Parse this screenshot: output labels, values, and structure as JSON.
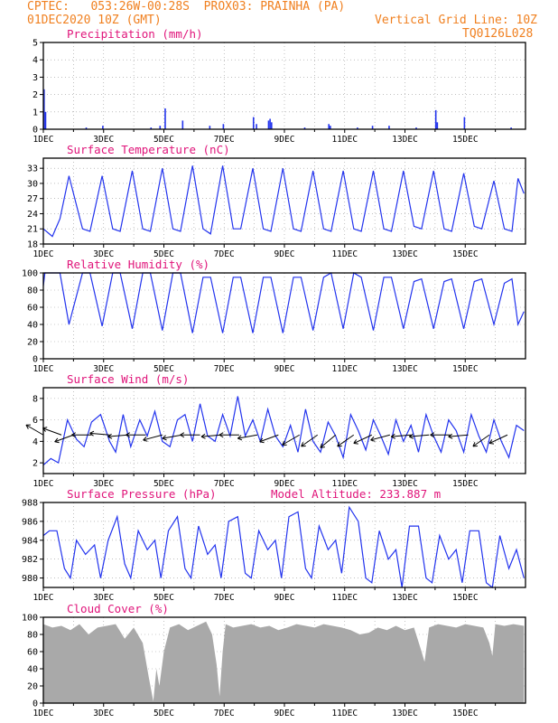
{
  "header": {
    "line1_left": "CPTEC:   053:26W-00:28S  PROX03: PRAINHA (PA)",
    "line2_left": "01DEC2020 10Z (GMT)",
    "line2_right": "Vertical Grid Line: 10Z",
    "line3_right": "TQ0126L028"
  },
  "colors": {
    "header": "#f08020",
    "title": "#e0147a",
    "series": "#2233ee",
    "cloud": "#a9a9a9",
    "grid": "#999999"
  },
  "chart_data": [
    {
      "type": "bar",
      "title": "Precipitation (mm/h)",
      "ylim": [
        0,
        5
      ],
      "yticks": [
        0,
        1,
        2,
        3,
        4,
        5
      ],
      "xticks": [
        "1DEC",
        "3DEC",
        "5DEC",
        "7DEC",
        "9DEC",
        "11DEC",
        "13DEC",
        "15DEC"
      ],
      "x_days": [
        0.0,
        0.05,
        1.4,
        1.95,
        3.55,
        3.85,
        4.02,
        4.6,
        5.5,
        5.95,
        6.95,
        7.05,
        7.45,
        7.5,
        7.55,
        8.65,
        9.45,
        9.5,
        10.4,
        10.9,
        11.45,
        12.35,
        13.0,
        13.05,
        13.95,
        15.5
      ],
      "values": [
        2.3,
        1.0,
        0.1,
        0.2,
        0.1,
        0.2,
        1.2,
        0.5,
        0.2,
        0.3,
        0.7,
        0.3,
        0.5,
        0.6,
        0.4,
        0.1,
        0.3,
        0.2,
        0.1,
        0.2,
        0.2,
        0.1,
        1.1,
        0.4,
        0.7,
        0.1
      ]
    },
    {
      "type": "line",
      "title": "Surface Temperature (nC)",
      "ylim": [
        18,
        35
      ],
      "yticks": [
        18,
        21,
        24,
        27,
        30,
        33
      ],
      "xticks": [
        "1DEC",
        "3DEC",
        "5DEC",
        "7DEC",
        "9DEC",
        "11DEC",
        "13DEC",
        "15DEC"
      ],
      "x_days": [
        0,
        0.3,
        0.55,
        0.85,
        1.3,
        1.55,
        1.95,
        2.3,
        2.55,
        2.95,
        3.3,
        3.55,
        3.95,
        4.3,
        4.55,
        4.95,
        5.3,
        5.55,
        5.95,
        6.3,
        6.55,
        6.95,
        7.3,
        7.55,
        7.95,
        8.3,
        8.55,
        8.95,
        9.3,
        9.55,
        9.95,
        10.3,
        10.55,
        10.95,
        11.3,
        11.55,
        11.95,
        12.3,
        12.55,
        12.95,
        13.3,
        13.55,
        13.95,
        14.3,
        14.55,
        14.95,
        15.3,
        15.55,
        15.75,
        15.95
      ],
      "values": [
        21,
        19.5,
        23,
        31.5,
        21,
        20.5,
        31.5,
        21,
        20.5,
        32.5,
        21,
        20.5,
        33,
        21,
        20.5,
        33.5,
        21,
        20,
        33.5,
        21,
        21,
        33,
        21,
        20.5,
        33,
        21,
        20.5,
        32.5,
        21,
        20.5,
        32.5,
        21,
        20.5,
        32.5,
        21,
        20.5,
        32.5,
        21.5,
        21,
        32.5,
        21,
        20.5,
        32,
        21.5,
        21,
        30.5,
        21,
        20.5,
        31,
        28
      ]
    },
    {
      "type": "line",
      "title": "Relative Humidity (%)",
      "ylim": [
        0,
        100
      ],
      "yticks": [
        0,
        20,
        40,
        60,
        80,
        100
      ],
      "xticks": [
        "1DEC",
        "3DEC",
        "5DEC",
        "7DEC",
        "9DEC",
        "11DEC",
        "13DEC",
        "15DEC"
      ],
      "x_days": [
        0,
        0.05,
        0.3,
        0.55,
        0.85,
        1.3,
        1.55,
        1.95,
        2.3,
        2.55,
        2.95,
        3.3,
        3.55,
        3.95,
        4.3,
        4.55,
        4.95,
        5.3,
        5.55,
        5.95,
        6.3,
        6.55,
        6.95,
        7.3,
        7.55,
        7.95,
        8.3,
        8.55,
        8.95,
        9.3,
        9.55,
        9.95,
        10.3,
        10.55,
        10.95,
        11.3,
        11.55,
        11.95,
        12.3,
        12.55,
        12.95,
        13.3,
        13.55,
        13.95,
        14.3,
        14.55,
        14.95,
        15.3,
        15.55,
        15.75,
        15.95
      ],
      "values": [
        85,
        100,
        100,
        100,
        40,
        100,
        100,
        38,
        100,
        100,
        35,
        100,
        100,
        33,
        100,
        100,
        30,
        95,
        95,
        30,
        95,
        95,
        30,
        95,
        95,
        30,
        95,
        95,
        33,
        95,
        100,
        35,
        100,
        95,
        33,
        95,
        95,
        35,
        90,
        93,
        35,
        90,
        93,
        35,
        90,
        93,
        40,
        88,
        93,
        40,
        55
      ]
    },
    {
      "type": "line",
      "title": "Surface Wind (m/s)",
      "ylim": [
        1,
        9
      ],
      "yticks": [
        2,
        4,
        6,
        8
      ],
      "xticks": [
        "1DEC",
        "3DEC",
        "5DEC",
        "7DEC",
        "9DEC",
        "11DEC",
        "13DEC",
        "15DEC"
      ],
      "x_days": [
        0,
        0.25,
        0.5,
        0.8,
        1.1,
        1.35,
        1.6,
        1.9,
        2.2,
        2.4,
        2.65,
        2.9,
        3.2,
        3.45,
        3.7,
        3.95,
        4.2,
        4.45,
        4.7,
        4.95,
        5.2,
        5.45,
        5.7,
        5.95,
        6.2,
        6.45,
        6.7,
        6.95,
        7.2,
        7.45,
        7.7,
        7.95,
        8.2,
        8.45,
        8.7,
        8.95,
        9.2,
        9.45,
        9.7,
        9.95,
        10.2,
        10.45,
        10.7,
        10.95,
        11.2,
        11.45,
        11.7,
        11.95,
        12.2,
        12.45,
        12.7,
        12.95,
        13.2,
        13.45,
        13.7,
        13.95,
        14.2,
        14.45,
        14.7,
        14.95,
        15.2,
        15.45,
        15.7,
        15.95
      ],
      "values": [
        1.8,
        2.4,
        2.0,
        6.0,
        4.2,
        3.5,
        5.8,
        6.5,
        4.0,
        3.0,
        6.5,
        3.5,
        6.0,
        4.5,
        6.8,
        4.0,
        3.5,
        6.0,
        6.5,
        4.0,
        7.5,
        4.5,
        4.0,
        6.5,
        4.5,
        8.2,
        4.5,
        6.0,
        4.0,
        7.0,
        4.5,
        3.5,
        5.5,
        3.0,
        7.0,
        4.0,
        3.0,
        5.8,
        4.5,
        2.5,
        6.5,
        5.0,
        3.2,
        6.0,
        4.5,
        2.8,
        6.0,
        4.0,
        5.5,
        3.0,
        6.5,
        4.5,
        3.0,
        6.0,
        5.0,
        3.0,
        6.5,
        4.5,
        3.0,
        6.0,
        4.0,
        2.5,
        5.5,
        5.0
      ],
      "arrows": [
        {
          "day": 0.0,
          "dir_deg": 150
        },
        {
          "day": 0.6,
          "dir_deg": 160
        },
        {
          "day": 1.0,
          "dir_deg": 200
        },
        {
          "day": 1.6,
          "dir_deg": 180
        },
        {
          "day": 2.2,
          "dir_deg": 175
        },
        {
          "day": 2.8,
          "dir_deg": 185
        },
        {
          "day": 3.4,
          "dir_deg": 180
        },
        {
          "day": 3.95,
          "dir_deg": 195
        },
        {
          "day": 4.6,
          "dir_deg": 190
        },
        {
          "day": 5.2,
          "dir_deg": 180
        },
        {
          "day": 5.9,
          "dir_deg": 185
        },
        {
          "day": 6.5,
          "dir_deg": 180
        },
        {
          "day": 7.1,
          "dir_deg": 190
        },
        {
          "day": 7.8,
          "dir_deg": 200
        },
        {
          "day": 8.5,
          "dir_deg": 210
        },
        {
          "day": 9.1,
          "dir_deg": 215
        },
        {
          "day": 9.7,
          "dir_deg": 220
        },
        {
          "day": 10.3,
          "dir_deg": 215
        },
        {
          "day": 10.9,
          "dir_deg": 205
        },
        {
          "day": 11.5,
          "dir_deg": 195
        },
        {
          "day": 12.2,
          "dir_deg": 185
        },
        {
          "day": 12.8,
          "dir_deg": 185
        },
        {
          "day": 13.5,
          "dir_deg": 180
        },
        {
          "day": 14.1,
          "dir_deg": 185
        },
        {
          "day": 14.8,
          "dir_deg": 215
        },
        {
          "day": 15.4,
          "dir_deg": 205
        }
      ]
    },
    {
      "type": "line",
      "title": "Surface Pressure (hPa)",
      "annotation": "Model Altitude: 233.887 m",
      "ylim": [
        979,
        988
      ],
      "yticks": [
        980,
        982,
        984,
        986,
        988
      ],
      "xticks": [
        "1DEC",
        "3DEC",
        "5DEC",
        "7DEC",
        "9DEC",
        "11DEC",
        "13DEC",
        "15DEC"
      ],
      "x_days": [
        0,
        0.2,
        0.45,
        0.7,
        0.9,
        1.1,
        1.4,
        1.7,
        1.9,
        2.15,
        2.45,
        2.7,
        2.9,
        3.15,
        3.45,
        3.7,
        3.9,
        4.15,
        4.45,
        4.7,
        4.9,
        5.15,
        5.45,
        5.7,
        5.9,
        6.15,
        6.45,
        6.7,
        6.9,
        7.15,
        7.45,
        7.7,
        7.9,
        8.15,
        8.45,
        8.7,
        8.9,
        9.15,
        9.45,
        9.7,
        9.9,
        10.15,
        10.45,
        10.7,
        10.9,
        11.15,
        11.45,
        11.7,
        11.9,
        12.15,
        12.45,
        12.7,
        12.9,
        13.15,
        13.45,
        13.7,
        13.9,
        14.15,
        14.45,
        14.7,
        14.9,
        15.15,
        15.45,
        15.7,
        15.95
      ],
      "values": [
        984.5,
        985.0,
        985.0,
        981.0,
        980.0,
        984.0,
        982.5,
        983.5,
        980.0,
        984.0,
        986.5,
        981.5,
        980.0,
        985.0,
        983.0,
        984.0,
        980.0,
        985.0,
        986.5,
        981.0,
        980.0,
        985.5,
        982.5,
        983.5,
        980.0,
        986.0,
        986.5,
        980.5,
        980.0,
        985.0,
        983.0,
        984.0,
        980.0,
        986.5,
        987.0,
        981.0,
        980.0,
        985.5,
        983.0,
        984.0,
        980.5,
        987.5,
        986.0,
        980.0,
        979.5,
        985.0,
        982.0,
        983.0,
        979.0,
        985.5,
        985.5,
        980.0,
        979.5,
        984.5,
        982.0,
        983.0,
        979.5,
        985.0,
        985.0,
        979.5,
        979.0,
        984.5,
        981.0,
        983.0,
        980.0
      ]
    },
    {
      "type": "area",
      "title": "Cloud Cover (%)",
      "ylim": [
        0,
        100
      ],
      "yticks": [
        0,
        20,
        40,
        60,
        80,
        100
      ],
      "xticks": [
        "1DEC",
        "3DEC",
        "5DEC",
        "7DEC",
        "9DEC",
        "11DEC",
        "13DEC",
        "15DEC"
      ],
      "x_days": [
        0,
        0.3,
        0.6,
        0.9,
        1.2,
        1.5,
        1.8,
        2.1,
        2.4,
        2.7,
        3.0,
        3.3,
        3.5,
        3.65,
        3.75,
        3.85,
        4.0,
        4.2,
        4.5,
        4.8,
        5.1,
        5.4,
        5.6,
        5.75,
        5.85,
        5.95,
        6.05,
        6.3,
        6.6,
        6.9,
        7.2,
        7.5,
        7.8,
        8.1,
        8.4,
        8.7,
        9.0,
        9.3,
        9.6,
        9.9,
        10.2,
        10.5,
        10.8,
        11.1,
        11.4,
        11.7,
        12.0,
        12.3,
        12.55,
        12.65,
        12.8,
        13.1,
        13.4,
        13.7,
        14.0,
        14.3,
        14.6,
        14.8,
        14.9,
        15.0,
        15.3,
        15.6,
        15.95
      ],
      "values": [
        92,
        88,
        90,
        85,
        92,
        80,
        88,
        90,
        92,
        75,
        88,
        70,
        30,
        2,
        40,
        20,
        60,
        88,
        92,
        85,
        90,
        95,
        80,
        45,
        8,
        60,
        92,
        88,
        90,
        92,
        88,
        90,
        85,
        88,
        92,
        90,
        88,
        92,
        90,
        88,
        85,
        80,
        82,
        88,
        85,
        90,
        85,
        88,
        60,
        48,
        88,
        92,
        90,
        88,
        92,
        90,
        88,
        70,
        55,
        92,
        90,
        92,
        90
      ]
    }
  ]
}
